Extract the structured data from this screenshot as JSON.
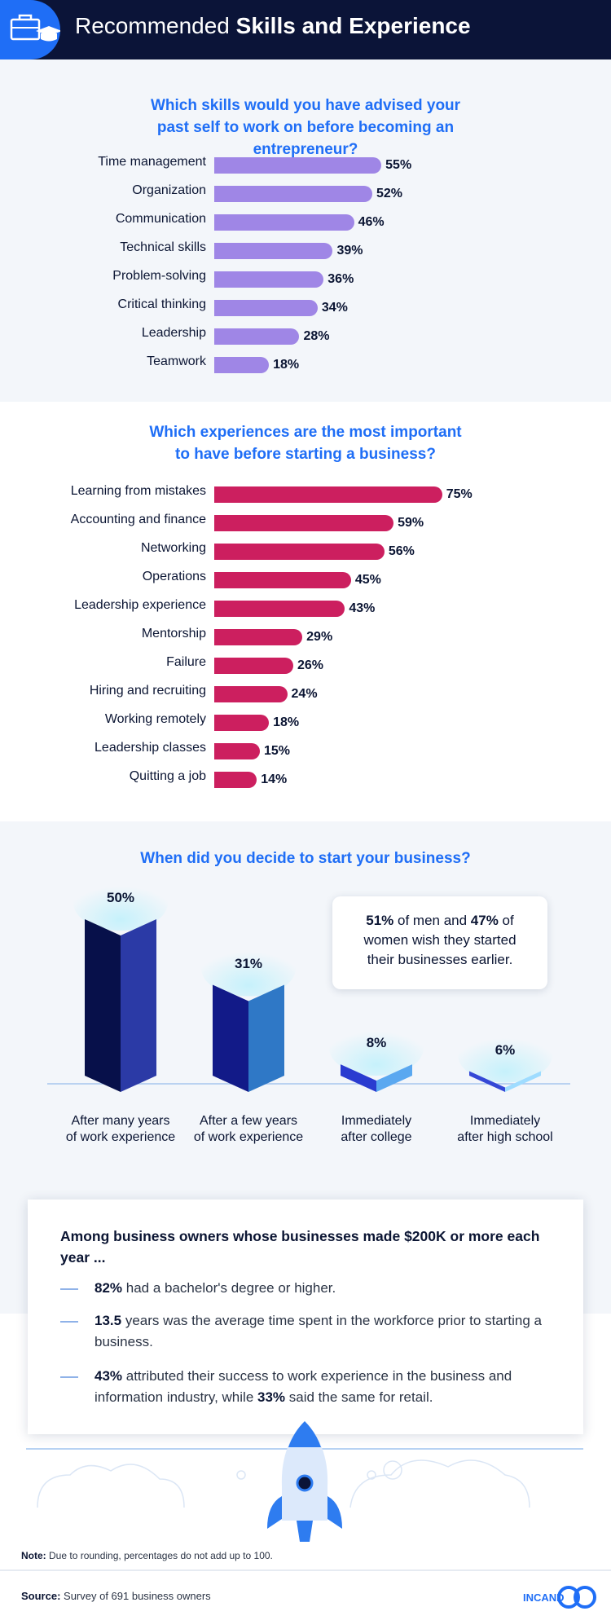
{
  "header": {
    "title_light": "Recommended ",
    "title_bold": "Skills and Experience",
    "icon": "briefcase-graduation-cap-icon"
  },
  "colors": {
    "navy": "#0b1438",
    "accent_blue": "#1f6ef6",
    "skills_bar": "#9f86e6",
    "experience_bar": "#cc1f5f"
  },
  "chart_data": [
    {
      "type": "bar",
      "orientation": "horizontal",
      "title": "Which skills would you have advised your past self to work on before becoming an entrepreneur?",
      "categories": [
        "Time management",
        "Organization",
        "Communication",
        "Technical skills",
        "Problem-solving",
        "Critical thinking",
        "Leadership",
        "Teamwork"
      ],
      "values": [
        55,
        52,
        46,
        39,
        36,
        34,
        28,
        18
      ],
      "value_labels": [
        "55%",
        "52%",
        "46%",
        "39%",
        "36%",
        "34%",
        "28%",
        "18%"
      ],
      "xlim": [
        0,
        75
      ]
    },
    {
      "type": "bar",
      "orientation": "horizontal",
      "title": "Which experiences are the most important to have before starting a business?",
      "categories": [
        "Learning from mistakes",
        "Accounting and finance",
        "Networking",
        "Operations",
        "Leadership experience",
        "Mentorship",
        "Failure",
        "Hiring and recruiting",
        "Working remotely",
        "Leadership classes",
        "Quitting a job"
      ],
      "values": [
        75,
        59,
        56,
        45,
        43,
        29,
        26,
        24,
        18,
        15,
        14
      ],
      "value_labels": [
        "75%",
        "59%",
        "56%",
        "45%",
        "43%",
        "29%",
        "26%",
        "24%",
        "18%",
        "15%",
        "14%"
      ],
      "xlim": [
        0,
        75
      ]
    },
    {
      "type": "bar",
      "orientation": "vertical",
      "title": "When did you decide to start your business?",
      "categories": [
        "After many years of work experience",
        "After a few years of work experience",
        "Immediately after college",
        "Immediately after high school"
      ],
      "category_lines": [
        [
          "After many years",
          "of work experience"
        ],
        [
          "After a few years",
          "of work experience"
        ],
        [
          "Immediately",
          "after college"
        ],
        [
          "Immediately",
          "after high school"
        ]
      ],
      "values": [
        50,
        31,
        8,
        6
      ],
      "value_labels": [
        "50%",
        "31%",
        "8%",
        "6%"
      ],
      "ylim": [
        0,
        50
      ]
    }
  ],
  "callout": {
    "pct_men": "51%",
    "text_1": " of men and ",
    "pct_women": "47%",
    "text_2": " of women wish they started their businesses earlier."
  },
  "card": {
    "title": "Among business owners whose businesses made $200K or more each year ...",
    "items": [
      {
        "bold": "82%",
        "text": " had a bachelor's degree or higher."
      },
      {
        "bold": "13.5",
        "text": " years was the average time spent in the workforce prior to starting a business."
      },
      {
        "bold": "43%",
        "text": " attributed their success to work experience in the business and information industry, while ",
        "bold2": "33%",
        "text2": " said the same for retail."
      }
    ]
  },
  "decoration": {
    "icon": "rocket-icon"
  },
  "note": {
    "label": "Note:",
    "text": " Due to rounding, percentages do not add up to 100."
  },
  "source": {
    "label": "Source:",
    "text": " Survey of 691 business owners"
  },
  "logo": {
    "text": "INCAND",
    "icon": "incandeo-logo-icon"
  }
}
